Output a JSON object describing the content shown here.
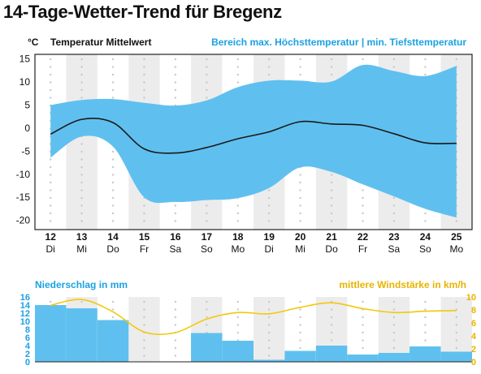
{
  "page": {
    "title": "14-Tage-Wetter-Trend für Bregenz"
  },
  "chart_data": [
    {
      "type": "area",
      "unit_label": "°C",
      "title": "Temperatur Mittelwert",
      "range_title": "Bereich max. Höchsttemperatur | min. Tiefsttemperatur",
      "days": [
        "12",
        "13",
        "14",
        "15",
        "16",
        "17",
        "18",
        "19",
        "20",
        "21",
        "22",
        "23",
        "24",
        "25"
      ],
      "weekdays": [
        "Di",
        "Mi",
        "Do",
        "Fr",
        "Sa",
        "So",
        "Mo",
        "Di",
        "Mi",
        "Do",
        "Fr",
        "Sa",
        "So",
        "Mo"
      ],
      "ylim": [
        -22,
        16
      ],
      "yticks": [
        "15",
        "10",
        "5",
        "0",
        "-5",
        "-10",
        "-15",
        "-20"
      ],
      "series": [
        {
          "name": "Temperatur Mittelwert",
          "values": [
            -1.3,
            1.9,
            1.2,
            -4.5,
            -5.4,
            -4.2,
            -2.3,
            -0.8,
            1.4,
            0.9,
            0.6,
            -1.2,
            -3.2,
            -3.3
          ]
        },
        {
          "name": "max. Höchsttemperatur",
          "values": [
            5.0,
            6.1,
            6.3,
            5.5,
            4.9,
            6.0,
            8.9,
            10.3,
            10.3,
            10.1,
            13.7,
            12.4,
            11.3,
            13.5
          ]
        },
        {
          "name": "min. Tiefsttemperatur",
          "values": [
            -6.4,
            -1.8,
            -4.0,
            -15.0,
            -16.0,
            -15.6,
            -15.2,
            -13.0,
            -8.5,
            -9.5,
            -12.2,
            -14.8,
            -17.5,
            -19.4
          ]
        }
      ],
      "colors": {
        "range": "#5fc0ef",
        "mean": "#1a1a1a",
        "title_range": "#1ba1e2",
        "stripe": "#ececec"
      }
    },
    {
      "type": "bar",
      "ylabel_left": "Niederschlag in mm",
      "ylabel_right": "mittlere Windstärke in km/h",
      "ylim_left": [
        0,
        16
      ],
      "ylim_right": [
        0,
        10
      ],
      "yticks_left": [
        "0",
        "2",
        "4",
        "6",
        "8",
        "10",
        "12",
        "14",
        "16"
      ],
      "yticks_right": [
        "0",
        "2",
        "4",
        "6",
        "8",
        "10"
      ],
      "series": [
        {
          "name": "Niederschlag in mm",
          "values": [
            14.0,
            13.2,
            10.3,
            0,
            0,
            7.1,
            5.2,
            0.5,
            2.7,
            4.0,
            1.8,
            2.2,
            3.8,
            2.5
          ]
        },
        {
          "name": "mittlere Windstärke in km/h",
          "values": [
            8.7,
            9.6,
            7.7,
            4.6,
            4.5,
            6.6,
            7.6,
            7.4,
            8.4,
            9.1,
            8.2,
            7.6,
            7.8,
            7.9
          ]
        }
      ],
      "colors": {
        "bar": "#5fc0ef",
        "wind": "#f2c80f",
        "left_axis": "#1ba1e2",
        "right_axis": "#e8b400"
      }
    }
  ]
}
